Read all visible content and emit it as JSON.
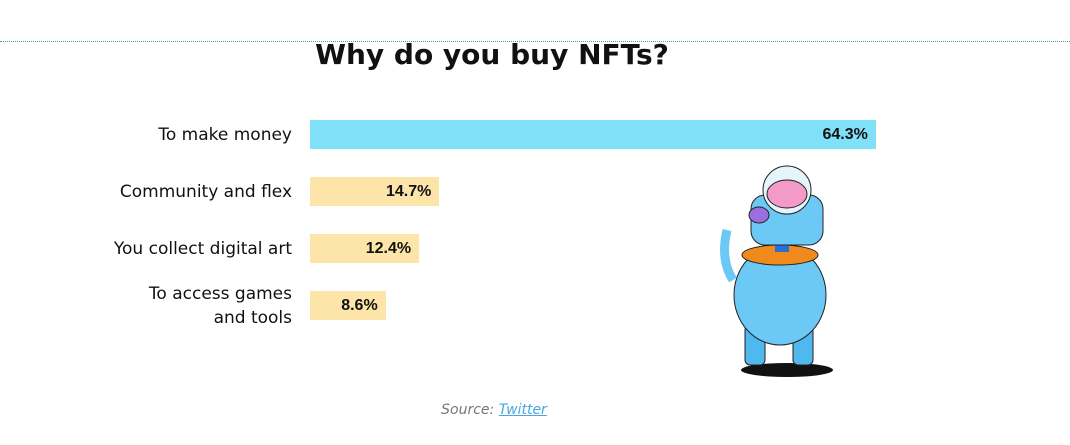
{
  "chart_data": {
    "type": "bar",
    "orientation": "horizontal",
    "title": "Why do you buy NFTs?",
    "categories": [
      "To make money",
      "Community and flex",
      "You collect digital art",
      "To access games\nand tools"
    ],
    "values": [
      64.3,
      14.7,
      12.4,
      8.6
    ],
    "value_labels": [
      "64.3%",
      "14.7%",
      "12.4%",
      "8.6%"
    ],
    "colors": [
      "#80e0f8",
      "#fde4a9",
      "#fde4a9",
      "#fde4a9"
    ],
    "source_label": "Source:",
    "source_link": "Twitter"
  }
}
